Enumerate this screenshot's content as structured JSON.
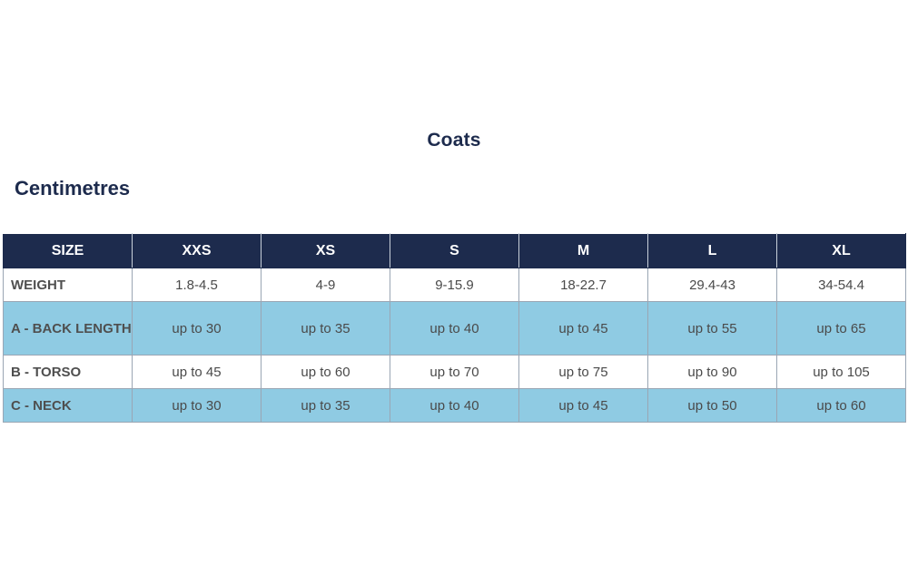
{
  "title": "Coats",
  "unit_heading": "Centimetres",
  "table": {
    "headers": [
      "SIZE",
      "XXS",
      "XS",
      "S",
      "M",
      "L",
      "XL"
    ],
    "rows": [
      {
        "label": "WEIGHT",
        "values": [
          "1.8-4.5",
          "4-9",
          "9-15.9",
          "18-22.7",
          "29.4-43",
          "34-54.4"
        ]
      },
      {
        "label": "A - BACK LENGTH",
        "values": [
          "up to 30",
          "up to 35",
          "up to 40",
          "up to 45",
          "up to 55",
          "up to 65"
        ]
      },
      {
        "label": "B - TORSO",
        "values": [
          "up to 45",
          "up to 60",
          "up to 70",
          "up to 75",
          "up to 90",
          "up to 105"
        ]
      },
      {
        "label": "C - NECK",
        "values": [
          "up to 30",
          "up to 35",
          "up to 40",
          "up to 45",
          "up to 50",
          "up to 60"
        ]
      }
    ]
  },
  "colors": {
    "header_bg": "#1d2b4d",
    "band_blue": "#8fcbe3",
    "heading_text": "#1d2b4d"
  }
}
